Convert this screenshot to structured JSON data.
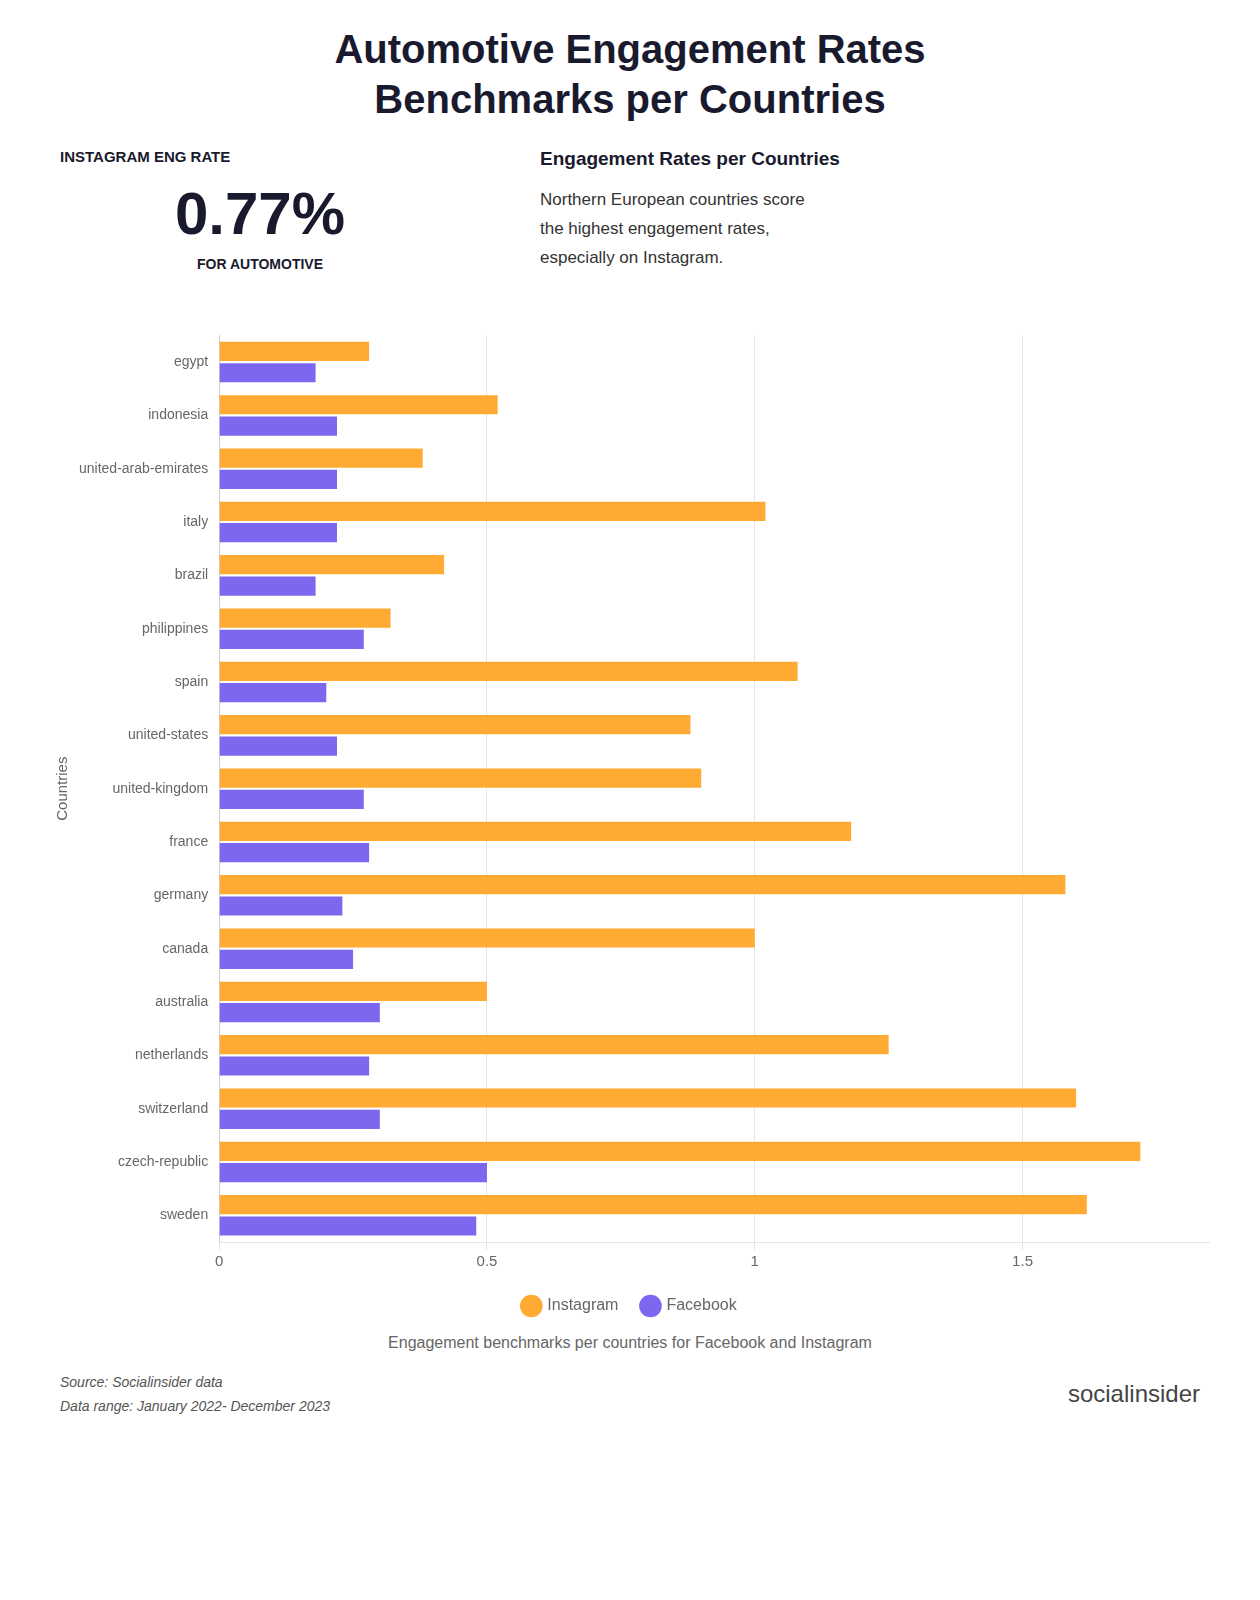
{
  "chart_data": {
    "type": "bar",
    "orientation": "horizontal",
    "title": [
      "Automotive Engagement Rates",
      "Benchmarks per Countries"
    ],
    "annotations": [
      "INSTAGRAM ENG RATE",
      "0.77%",
      "FOR AUTOMOTIVE",
      "Engagement Rates per Countries",
      "Northern European countries score\nthe highest engagement rates,\nespecially on Instagram.",
      "Engagement benchmarks per countries for Facebook and Instagram",
      "Source: Socialinsider data",
      "Data range: January 2022- December 2023",
      "socialinsider"
    ],
    "categories": [
      "sweden",
      "czech-republic",
      "switzerland",
      "netherlands",
      "australia",
      "canada",
      "germany",
      "france",
      "united-kingdom",
      "united-states",
      "spain",
      "philippines",
      "brazil",
      "italy",
      "united-arab-emirates",
      "indonesia",
      "egypt"
    ],
    "series": [
      {
        "name": "Instagram",
        "color": "#FFAA33",
        "values": [
          1.62,
          1.72,
          1.6,
          1.25,
          0.5,
          1.0,
          1.58,
          1.18,
          0.9,
          0.88,
          1.08,
          0.32,
          0.42,
          1.02,
          0.38,
          0.52,
          0.28
        ]
      },
      {
        "name": "Facebook",
        "color": "#7B68EE",
        "values": [
          0.48,
          0.5,
          0.3,
          0.28,
          0.3,
          0.25,
          0.23,
          0.28,
          0.27,
          0.22,
          0.2,
          0.27,
          0.18,
          0.22,
          0.22,
          0.22,
          0.18
        ]
      }
    ],
    "ylabel": "Countries",
    "xlim": [
      0,
      1.85
    ],
    "xticks": [
      0,
      0.5,
      1,
      1.5
    ],
    "grid": true,
    "legend": "bottom"
  }
}
